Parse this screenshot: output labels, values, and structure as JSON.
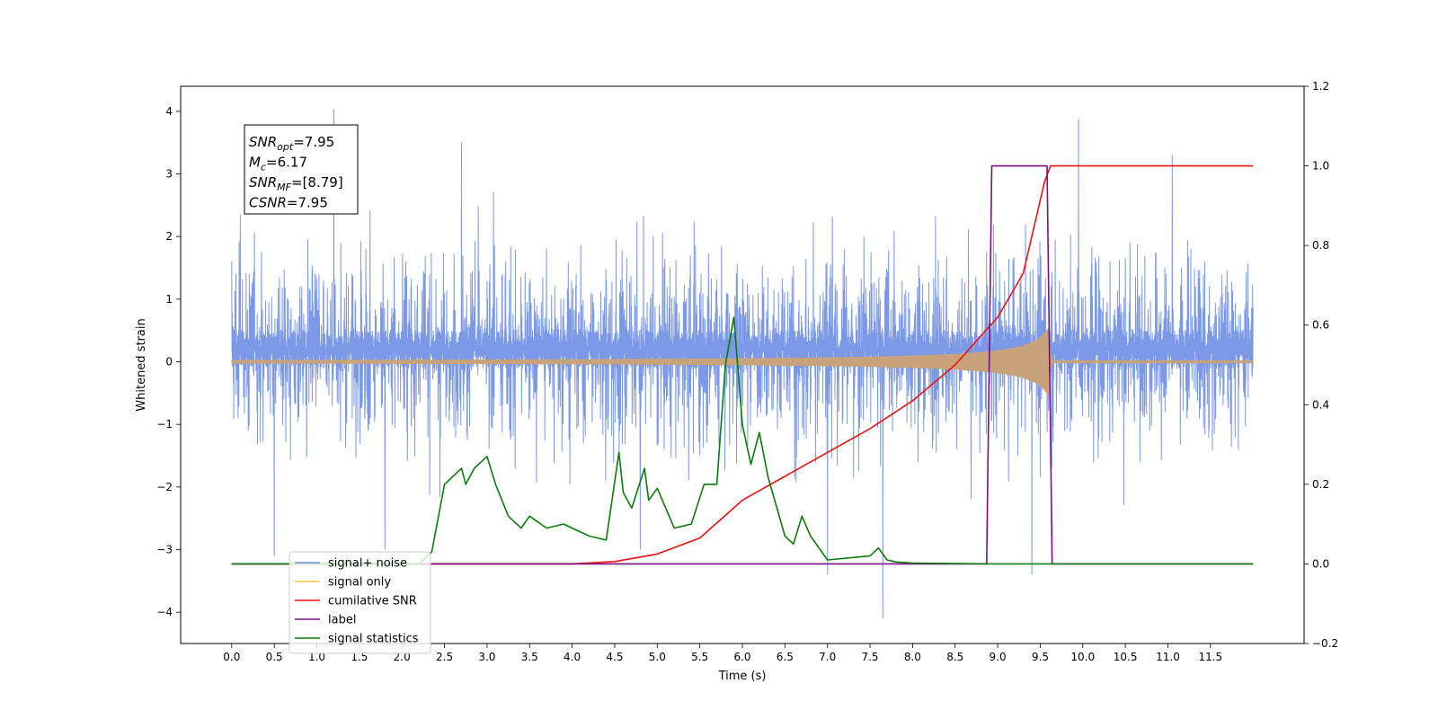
{
  "chart_data": {
    "type": "line",
    "xlabel": "Time (s)",
    "ylabel": "Whitened strain",
    "xlim": [
      -0.6,
      12.6
    ],
    "ylim": [
      -4.5,
      4.4
    ],
    "y2lim": [
      -0.2,
      1.2
    ],
    "xticks": [
      "0.0",
      "0.5",
      "1.0",
      "1.5",
      "2.0",
      "2.5",
      "3.0",
      "3.5",
      "4.0",
      "4.5",
      "5.0",
      "5.5",
      "6.0",
      "6.5",
      "7.0",
      "7.5",
      "8.0",
      "8.5",
      "9.0",
      "9.5",
      "10.0",
      "10.5",
      "11.0",
      "11.5"
    ],
    "yticks": [
      "4",
      "3",
      "2",
      "1",
      "0",
      "−1",
      "−2",
      "−3",
      "−4"
    ],
    "y2ticks": [
      "1.2",
      "1.0",
      "0.8",
      "0.6",
      "0.4",
      "0.2",
      "0.0",
      "−0.2"
    ],
    "grid": false,
    "legend_position": "lower-left",
    "annotation": {
      "lines": [
        {
          "sym": "SNR",
          "sub": "opt",
          "val": "=7.95"
        },
        {
          "sym": "M",
          "sub": "c",
          "val": "=6.17"
        },
        {
          "sym": "SNR",
          "sub": "MF",
          "val": "=[8.79]"
        },
        {
          "sym": "CSNR",
          "sub": "",
          "val": "=7.95"
        }
      ]
    },
    "series": [
      {
        "name": "signal+ noise",
        "color": "#7593e6",
        "axis": "left",
        "kind": "noise",
        "t_start": 0.0,
        "t_end": 12.0,
        "typical_range": [
          -1.9,
          2.3
        ],
        "extremes": [
          [
            0.0,
            1.6
          ],
          [
            0.1,
            2.35
          ],
          [
            0.5,
            -3.1
          ],
          [
            1.2,
            4.03
          ],
          [
            1.8,
            -3.0
          ],
          [
            2.7,
            3.5
          ],
          [
            4.8,
            -3.0
          ],
          [
            7.0,
            -3.4
          ],
          [
            7.65,
            -4.1
          ],
          [
            9.4,
            -3.4
          ],
          [
            9.95,
            3.88
          ],
          [
            11.05,
            3.3
          ]
        ]
      },
      {
        "name": "signal only",
        "color": "#c8a27a",
        "axis": "left",
        "kind": "chirp",
        "t_start": 0.0,
        "t_merger": 9.6,
        "t_end": 12.0,
        "peak": 0.55
      },
      {
        "name": "cumilative SNR",
        "color": "#ee1111",
        "axis": "right",
        "x": [
          0.0,
          4.0,
          4.5,
          5.0,
          5.5,
          6.0,
          6.5,
          7.0,
          7.5,
          8.0,
          8.5,
          9.0,
          9.3,
          9.55,
          9.62,
          12.0
        ],
        "values": [
          0.0,
          0.0,
          0.006,
          0.025,
          0.065,
          0.16,
          0.22,
          0.28,
          0.34,
          0.41,
          0.5,
          0.62,
          0.73,
          0.96,
          1.0,
          1.0
        ]
      },
      {
        "name": "label",
        "color": "#7a0f82",
        "axis": "right",
        "x": [
          0.0,
          8.87,
          8.93,
          9.58,
          9.64,
          12.0
        ],
        "values": [
          0.0,
          0.0,
          1.0,
          1.0,
          0.0,
          0.0
        ]
      },
      {
        "name": "signal statistics",
        "color": "#0a7c0a",
        "axis": "right",
        "x": [
          0.0,
          2.2,
          2.35,
          2.5,
          2.6,
          2.7,
          2.75,
          2.85,
          3.0,
          3.1,
          3.25,
          3.4,
          3.5,
          3.7,
          3.9,
          4.0,
          4.2,
          4.4,
          4.55,
          4.6,
          4.7,
          4.85,
          4.9,
          5.0,
          5.2,
          5.4,
          5.55,
          5.7,
          5.8,
          5.9,
          6.0,
          6.1,
          6.2,
          6.3,
          6.5,
          6.6,
          6.7,
          6.8,
          7.0,
          7.5,
          7.6,
          7.7,
          7.8,
          8.0,
          8.9,
          12.0
        ],
        "values": [
          0.0,
          0.0,
          0.03,
          0.2,
          0.22,
          0.24,
          0.2,
          0.24,
          0.27,
          0.2,
          0.12,
          0.09,
          0.12,
          0.09,
          0.1,
          0.09,
          0.07,
          0.06,
          0.28,
          0.18,
          0.14,
          0.24,
          0.16,
          0.19,
          0.09,
          0.1,
          0.2,
          0.2,
          0.5,
          0.62,
          0.35,
          0.25,
          0.33,
          0.22,
          0.07,
          0.05,
          0.12,
          0.07,
          0.01,
          0.02,
          0.04,
          0.01,
          0.005,
          0.002,
          0.0,
          0.0
        ]
      }
    ]
  }
}
